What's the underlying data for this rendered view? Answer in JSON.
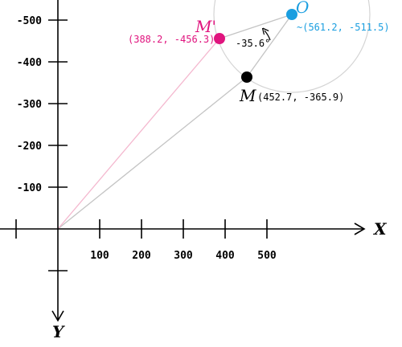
{
  "axes": {
    "x_label": "X",
    "y_label": "Y",
    "x_ticks": [
      "100",
      "200",
      "300",
      "400",
      "500"
    ],
    "y_ticks": [
      "-100",
      "-200",
      "-300",
      "-400",
      "-500"
    ]
  },
  "points": {
    "O": {
      "label": "O",
      "coord_text": "~(561.2, -511.5)",
      "color": "#1a9ee0"
    },
    "M": {
      "label": "M",
      "coord_text": "(452.7, -365.9)",
      "color": "#000000"
    },
    "M_prime": {
      "label": "M'",
      "coord_text": "(388.2, -456.3)",
      "color": "#e0147e"
    }
  },
  "angle": {
    "text": "-35.6°"
  },
  "colors": {
    "circle": "#d4d4d4",
    "line_M": "#c4c4c4",
    "line_M_prime": "#f4b8cf"
  }
}
